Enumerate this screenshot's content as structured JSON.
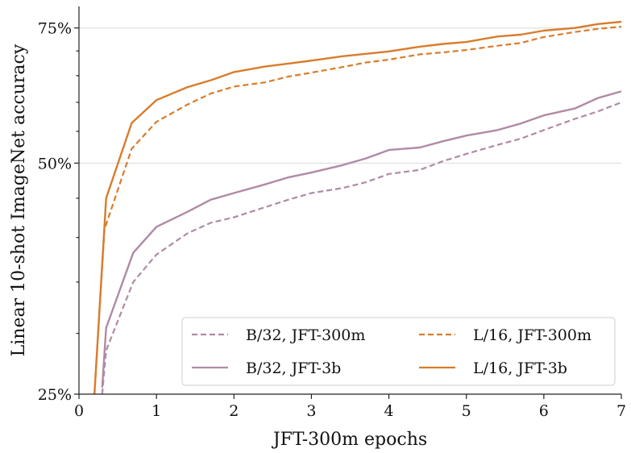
{
  "chart_data": {
    "type": "line",
    "title": "",
    "xlabel": "JFT-300m epochs",
    "ylabel": "Linear 10-shot ImageNet accuracy",
    "xlim": [
      0,
      7
    ],
    "ylim": [
      0.25,
      0.8
    ],
    "ylog": true,
    "x_ticks": [
      0,
      1,
      2,
      3,
      4,
      5,
      6,
      7
    ],
    "x_tick_labels": [
      "0",
      "1",
      "2",
      "3",
      "4",
      "5",
      "6",
      "7"
    ],
    "y_ticks": [
      0.25,
      0.5,
      0.75
    ],
    "y_tick_labels": [
      "25%",
      "50%",
      "75%"
    ],
    "grid": "horizontal at labeled y ticks",
    "legend_position": "lower-right",
    "series": [
      {
        "name": "B/32, JFT-300m",
        "color": "#b08aa5",
        "style": "dashed",
        "x": [
          0.3,
          0.35,
          0.7,
          1.0,
          1.4,
          1.7,
          2.0,
          2.4,
          2.7,
          3.0,
          3.4,
          3.7,
          4.0,
          4.4,
          4.7,
          5.0,
          5.4,
          5.7,
          6.0,
          6.4,
          6.7,
          7.0
        ],
        "y": [
          0.25,
          0.285,
          0.35,
          0.38,
          0.405,
          0.418,
          0.425,
          0.438,
          0.448,
          0.457,
          0.464,
          0.472,
          0.484,
          0.49,
          0.503,
          0.514,
          0.528,
          0.538,
          0.552,
          0.571,
          0.584,
          0.6
        ]
      },
      {
        "name": "B/32, JFT-3b",
        "color": "#b08aa5",
        "style": "solid",
        "x": [
          0.3,
          0.35,
          0.7,
          1.0,
          1.4,
          1.7,
          2.0,
          2.4,
          2.7,
          3.0,
          3.4,
          3.7,
          4.0,
          4.4,
          4.7,
          5.0,
          5.4,
          5.7,
          6.0,
          6.4,
          6.7,
          7.0
        ],
        "y": [
          0.255,
          0.305,
          0.382,
          0.413,
          0.432,
          0.448,
          0.457,
          0.469,
          0.479,
          0.486,
          0.497,
          0.507,
          0.52,
          0.524,
          0.534,
          0.543,
          0.552,
          0.563,
          0.577,
          0.589,
          0.608,
          0.62
        ]
      },
      {
        "name": "L/16, JFT-300m",
        "color": "#d97c2b",
        "style": "dashed",
        "x": [
          0.2,
          0.33,
          0.68,
          1.0,
          1.4,
          1.7,
          2.0,
          2.4,
          2.7,
          3.0,
          3.4,
          3.7,
          4.0,
          4.4,
          4.7,
          5.0,
          5.4,
          5.7,
          6.0,
          6.4,
          6.7,
          7.0
        ],
        "y": [
          0.25,
          0.41,
          0.522,
          0.566,
          0.596,
          0.616,
          0.629,
          0.637,
          0.648,
          0.656,
          0.667,
          0.676,
          0.682,
          0.693,
          0.697,
          0.702,
          0.711,
          0.717,
          0.73,
          0.741,
          0.748,
          0.753
        ]
      },
      {
        "name": "L/16, JFT-3b",
        "color": "#d97c2b",
        "style": "solid",
        "x": [
          0.2,
          0.35,
          0.68,
          1.0,
          1.4,
          1.7,
          2.0,
          2.4,
          2.7,
          3.0,
          3.4,
          3.7,
          4.0,
          4.4,
          4.7,
          5.0,
          5.4,
          5.7,
          6.0,
          6.4,
          6.7,
          7.0
        ],
        "y": [
          0.25,
          0.45,
          0.564,
          0.604,
          0.628,
          0.641,
          0.657,
          0.668,
          0.674,
          0.68,
          0.689,
          0.694,
          0.699,
          0.709,
          0.715,
          0.719,
          0.731,
          0.735,
          0.744,
          0.75,
          0.759,
          0.764
        ]
      }
    ]
  }
}
